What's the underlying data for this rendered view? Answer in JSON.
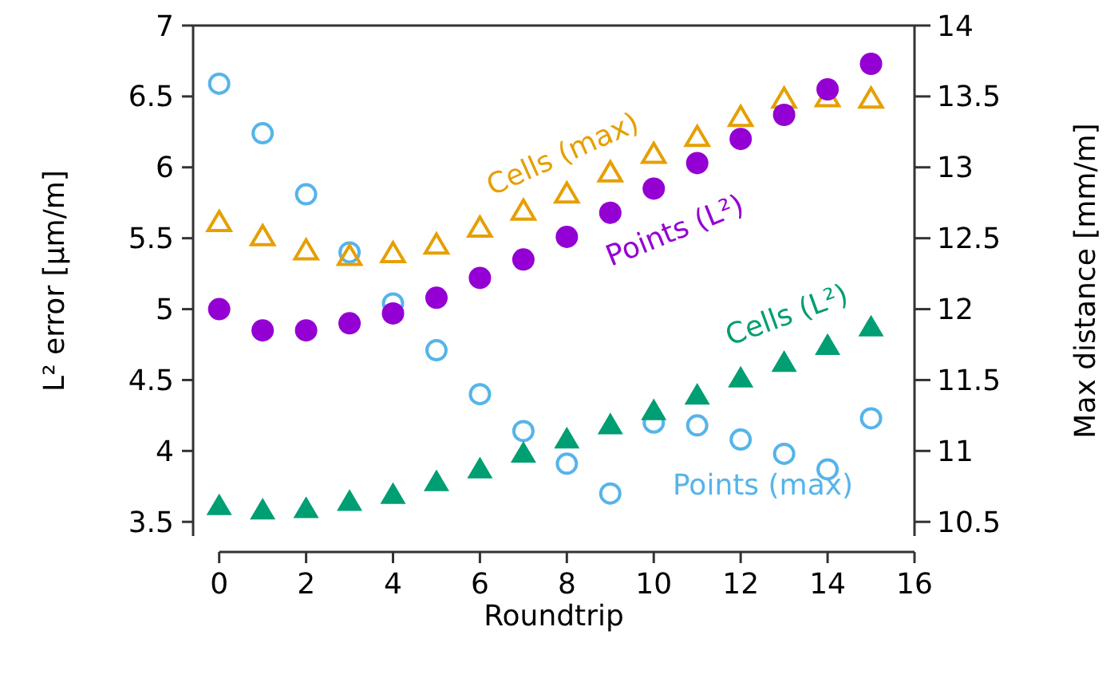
{
  "chart_data": {
    "type": "scatter",
    "xlabel": "Roundtrip",
    "ylabel": "L² error [µm/m]",
    "y2label": "Max distance [mm/m]",
    "x": [
      0,
      1,
      2,
      3,
      4,
      5,
      6,
      7,
      8,
      9,
      10,
      11,
      12,
      13,
      14,
      15
    ],
    "xlim": [
      -0.6,
      16
    ],
    "xticks": [
      0,
      2,
      4,
      6,
      8,
      10,
      12,
      14,
      16
    ],
    "ylim": [
      3.4,
      7
    ],
    "yticks": [
      3.5,
      4,
      4.5,
      5,
      5.5,
      6,
      6.5,
      7
    ],
    "y2lim": [
      10.4,
      14
    ],
    "y2ticks": [
      10.5,
      11,
      11.5,
      12,
      12.5,
      13,
      13.5,
      14
    ],
    "grid": false,
    "legend": false,
    "series": [
      {
        "name": "Points (max)",
        "color": "#56b4e9",
        "marker": "circle",
        "axis": "y2",
        "values": [
          13.59,
          13.24,
          12.81,
          12.4,
          12.04,
          11.71,
          11.4,
          11.14,
          10.91,
          10.7,
          11.2,
          11.18,
          11.08,
          10.98,
          10.87,
          11.23
        ]
      },
      {
        "name": "Cells (max)",
        "color": "#e69f00",
        "marker": "triangle",
        "axis": "y2",
        "values": [
          12.61,
          12.51,
          12.41,
          12.37,
          12.39,
          12.45,
          12.57,
          12.69,
          12.81,
          12.96,
          13.09,
          13.21,
          13.35,
          13.48,
          13.49,
          13.48
        ]
      },
      {
        "name": "Points (L²)",
        "color": "#9400d3",
        "marker": "circle",
        "values": [
          5.0,
          4.85,
          4.85,
          4.9,
          4.97,
          5.08,
          5.22,
          5.35,
          5.51,
          5.68,
          5.85,
          6.03,
          6.2,
          6.37,
          6.55,
          6.73
        ]
      },
      {
        "name": "Cells (L²)",
        "color": "#009e73",
        "marker": "triangle",
        "values": [
          3.61,
          3.58,
          3.59,
          3.64,
          3.69,
          3.78,
          3.87,
          3.98,
          4.08,
          4.18,
          4.28,
          4.39,
          4.51,
          4.62,
          4.74,
          4.87
        ]
      }
    ]
  }
}
